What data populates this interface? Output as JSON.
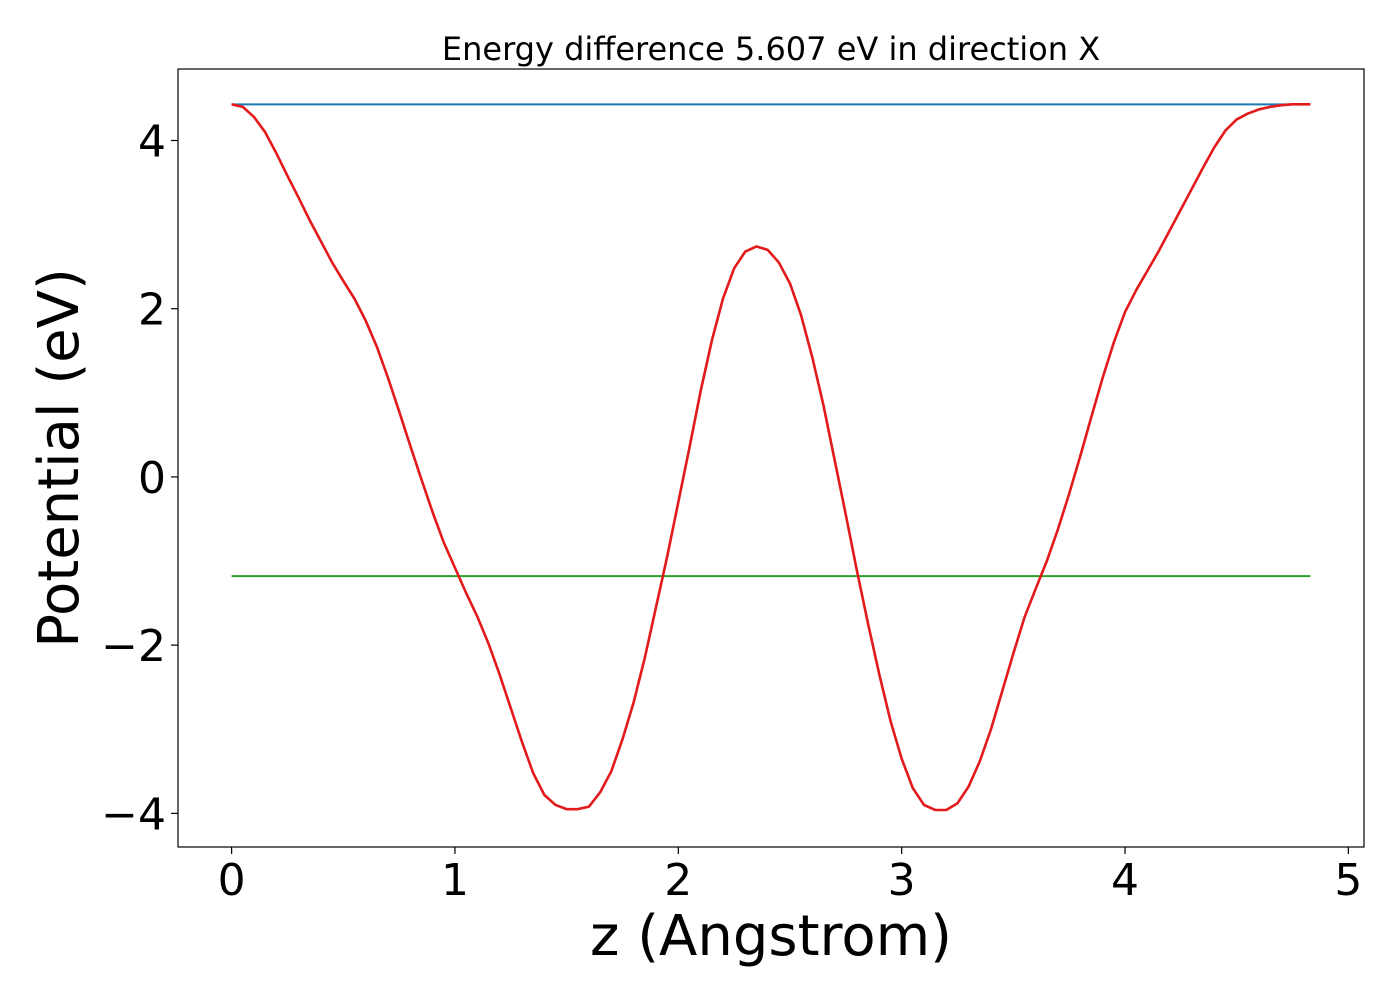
{
  "chart_data": {
    "type": "line",
    "title": "Energy difference 5.607 eV in direction X",
    "xlabel": "z (Angstrom)",
    "ylabel": "Potential (eV)",
    "xlim": [
      -0.24,
      5.07
    ],
    "ylim": [
      -4.4,
      4.85
    ],
    "grid": false,
    "xticks": [
      0,
      1,
      2,
      3,
      4,
      5
    ],
    "xtick_labels": [
      "0",
      "1",
      "2",
      "3",
      "4",
      "5"
    ],
    "yticks": [
      -4,
      -2,
      0,
      2,
      4
    ],
    "ytick_labels": [
      "−4",
      "−2",
      "0",
      "2",
      "4"
    ],
    "series": [
      {
        "color": "#1f77b4",
        "x": [
          0,
          4.83
        ],
        "y": [
          4.43,
          4.43
        ]
      },
      {
        "color": "#2ca02c",
        "x": [
          0,
          4.83
        ],
        "y": [
          -1.18,
          -1.18
        ]
      },
      {
        "color": "#e31a1c",
        "x": [
          0,
          0.05,
          0.1,
          0.15,
          0.2,
          0.25,
          0.3,
          0.35,
          0.4,
          0.45,
          0.5,
          0.55,
          0.6,
          0.65,
          0.7,
          0.75,
          0.8,
          0.85,
          0.9,
          0.95,
          1.0,
          1.05,
          1.1,
          1.15,
          1.2,
          1.25,
          1.3,
          1.35,
          1.4,
          1.45,
          1.5,
          1.55,
          1.6,
          1.65,
          1.7,
          1.75,
          1.8,
          1.85,
          1.9,
          1.95,
          2.0,
          2.05,
          2.1,
          2.15,
          2.2,
          2.25,
          2.3,
          2.35,
          2.4,
          2.45,
          2.5,
          2.55,
          2.6,
          2.65,
          2.7,
          2.75,
          2.8,
          2.85,
          2.9,
          2.95,
          3.0,
          3.05,
          3.1,
          3.15,
          3.2,
          3.25,
          3.3,
          3.35,
          3.4,
          3.45,
          3.5,
          3.55,
          3.6,
          3.65,
          3.7,
          3.75,
          3.8,
          3.85,
          3.9,
          3.95,
          4.0,
          4.05,
          4.1,
          4.15,
          4.2,
          4.25,
          4.3,
          4.35,
          4.4,
          4.45,
          4.5,
          4.55,
          4.6,
          4.65,
          4.7,
          4.75,
          4.8,
          4.83
        ],
        "y": [
          4.43,
          4.4,
          4.28,
          4.1,
          3.85,
          3.58,
          3.32,
          3.05,
          2.8,
          2.55,
          2.33,
          2.12,
          1.86,
          1.55,
          1.18,
          0.78,
          0.37,
          -0.03,
          -0.42,
          -0.78,
          -1.08,
          -1.38,
          -1.66,
          -1.98,
          -2.35,
          -2.75,
          -3.15,
          -3.52,
          -3.78,
          -3.9,
          -3.95,
          -3.95,
          -3.92,
          -3.75,
          -3.5,
          -3.12,
          -2.68,
          -2.15,
          -1.55,
          -0.95,
          -0.3,
          0.35,
          1.02,
          1.62,
          2.12,
          2.48,
          2.68,
          2.74,
          2.7,
          2.55,
          2.3,
          1.92,
          1.42,
          0.85,
          0.2,
          -0.45,
          -1.12,
          -1.75,
          -2.35,
          -2.9,
          -3.35,
          -3.7,
          -3.9,
          -3.96,
          -3.96,
          -3.88,
          -3.68,
          -3.38,
          -3.0,
          -2.55,
          -2.1,
          -1.67,
          -1.33,
          -1.0,
          -0.62,
          -0.2,
          0.25,
          0.72,
          1.18,
          1.6,
          1.96,
          2.22,
          2.45,
          2.68,
          2.93,
          3.18,
          3.43,
          3.68,
          3.92,
          4.12,
          4.25,
          4.32,
          4.37,
          4.4,
          4.42,
          4.43,
          4.43,
          4.43
        ]
      }
    ]
  }
}
